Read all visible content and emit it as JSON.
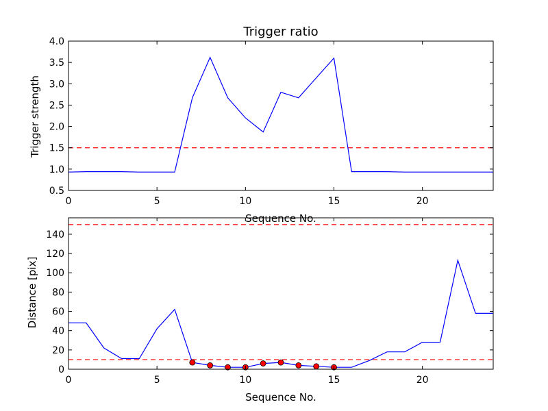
{
  "chart_data": [
    {
      "type": "line",
      "title": "Trigger ratio",
      "xlabel": "Sequence No.",
      "ylabel": "Trigger strength",
      "xlim": [
        0,
        24
      ],
      "ylim": [
        0.5,
        4.0
      ],
      "xticks": [
        "0",
        "5",
        "10",
        "15",
        "20"
      ],
      "yticks": [
        "0.5",
        "1.0",
        "1.5",
        "2.0",
        "2.5",
        "3.0",
        "3.5",
        "4.0"
      ],
      "threshold": 1.5,
      "line_color": "#0000ff",
      "threshold_color": "#ff0000",
      "series": [
        {
          "x": [
            0,
            1,
            2,
            3,
            4,
            5,
            6,
            7,
            8,
            9,
            10,
            11,
            12,
            13,
            14,
            15,
            16,
            17,
            18,
            19,
            20,
            21,
            22,
            23,
            24
          ],
          "values": [
            0.93,
            0.94,
            0.94,
            0.94,
            0.93,
            0.93,
            0.93,
            2.67,
            3.62,
            2.67,
            2.2,
            1.87,
            2.8,
            2.67,
            3.14,
            3.6,
            0.94,
            0.94,
            0.94,
            0.93,
            0.93,
            0.93,
            0.93,
            0.93,
            0.93
          ]
        }
      ]
    },
    {
      "type": "line",
      "title": "",
      "xlabel": "Sequence No.",
      "ylabel": "Distance [pix]",
      "xlim": [
        0,
        24
      ],
      "ylim": [
        0,
        157
      ],
      "xticks": [
        "0",
        "5",
        "10",
        "15",
        "20"
      ],
      "yticks": [
        "0",
        "20",
        "40",
        "60",
        "80",
        "100",
        "120",
        "140"
      ],
      "thresholds": [
        10,
        150
      ],
      "line_color": "#0000ff",
      "threshold_color": "#ff0000",
      "marker_color": "#ff0000",
      "series": [
        {
          "x": [
            0,
            1,
            2,
            3,
            4,
            5,
            6,
            7,
            8,
            9,
            10,
            11,
            12,
            13,
            14,
            15,
            16,
            17,
            18,
            19,
            20,
            21,
            22,
            23,
            24
          ],
          "values": [
            48,
            48,
            22,
            11,
            11,
            42,
            62,
            7,
            4,
            2,
            2,
            6,
            7,
            4,
            3,
            2,
            2,
            9,
            18,
            18,
            28,
            28,
            113,
            58,
            58
          ]
        }
      ],
      "markers": {
        "x": [
          7,
          8,
          9,
          10,
          11,
          12,
          13,
          14,
          15
        ],
        "values": [
          7,
          4,
          2,
          2,
          6,
          7,
          4,
          3,
          2
        ]
      }
    }
  ]
}
